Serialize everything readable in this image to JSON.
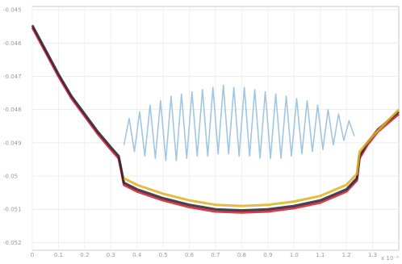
{
  "chart_data": {
    "type": "line",
    "title": "",
    "xlabel": "",
    "ylabel": "",
    "xlim": [
      0,
      1.4
    ],
    "ylim": [
      -0.0535,
      0.0565
    ],
    "grid": true,
    "legend": "none",
    "x_ticks": [
      {
        "v": 0.0,
        "label": "0"
      },
      {
        "v": 0.1,
        "label": "0.1"
      },
      {
        "v": 0.2,
        "label": "0.2"
      },
      {
        "v": 0.3,
        "label": "0.3"
      },
      {
        "v": 0.4,
        "label": "0.4"
      },
      {
        "v": 0.5,
        "label": "0.5"
      },
      {
        "v": 0.6,
        "label": "0.6"
      },
      {
        "v": 0.7,
        "label": "0.7"
      },
      {
        "v": 0.8,
        "label": "0.8"
      },
      {
        "v": 0.9,
        "label": "0.9"
      },
      {
        "v": 1.0,
        "label": "1.0"
      },
      {
        "v": 1.1,
        "label": "1.1"
      },
      {
        "v": 1.2,
        "label": "1.2"
      },
      {
        "v": 1.3,
        "label": "1.3"
      }
    ],
    "x_axis_note": "x 10⁻³",
    "y_ticks": [
      {
        "v": 0.055,
        "label": "-0.045"
      },
      {
        "v": 0.04,
        "label": "-0.046"
      },
      {
        "v": 0.025,
        "label": "-0.047"
      },
      {
        "v": 0.01,
        "label": "-0.048"
      },
      {
        "v": -0.005,
        "label": "-0.049"
      },
      {
        "v": -0.02,
        "label": "-0.05"
      },
      {
        "v": -0.035,
        "label": "-0.051"
      },
      {
        "v": -0.05,
        "label": "-0.052"
      }
    ],
    "series": [
      {
        "color": "#d11a2a",
        "x": [
          0,
          0.05,
          0.1,
          0.15,
          0.2,
          0.25,
          0.3,
          0.33,
          0.34,
          0.35,
          0.4,
          0.5,
          0.6,
          0.7,
          0.8,
          0.9,
          1.0,
          1.1,
          1.2,
          1.24,
          1.25,
          1.28,
          1.32,
          1.36,
          1.4
        ],
        "y": [
          0.047,
          0.036,
          0.025,
          0.015,
          0.007,
          -0.001,
          -0.008,
          -0.012,
          -0.018,
          -0.024,
          -0.027,
          -0.031,
          -0.034,
          -0.036,
          -0.0365,
          -0.036,
          -0.0345,
          -0.032,
          -0.027,
          -0.022,
          -0.012,
          -0.006,
          0.0,
          0.004,
          0.008
        ]
      },
      {
        "color": "#2a2030",
        "x": [
          0,
          0.05,
          0.1,
          0.15,
          0.2,
          0.25,
          0.3,
          0.33,
          0.34,
          0.35,
          0.4,
          0.5,
          0.6,
          0.7,
          0.8,
          0.9,
          1.0,
          1.1,
          1.2,
          1.24,
          1.25,
          1.28,
          1.32,
          1.36,
          1.4
        ],
        "y": [
          0.048,
          0.037,
          0.026,
          0.016,
          0.008,
          0.0,
          -0.007,
          -0.011,
          -0.017,
          -0.023,
          -0.026,
          -0.03,
          -0.033,
          -0.035,
          -0.0355,
          -0.035,
          -0.0335,
          -0.031,
          -0.026,
          -0.021,
          -0.011,
          -0.005,
          0.001,
          0.005,
          0.009
        ]
      },
      {
        "color": "#e0b020",
        "x": [
          0.35,
          0.4,
          0.5,
          0.6,
          0.7,
          0.8,
          0.9,
          1.0,
          1.1,
          1.2,
          1.24,
          1.25,
          1.3,
          1.35,
          1.4
        ],
        "y": [
          -0.021,
          -0.024,
          -0.028,
          -0.031,
          -0.033,
          -0.0335,
          -0.033,
          -0.0315,
          -0.029,
          -0.024,
          -0.019,
          -0.009,
          -0.002,
          0.004,
          0.01
        ]
      },
      {
        "color": "#9ec3de",
        "x": [
          0.35,
          0.37,
          0.39,
          0.41,
          0.43,
          0.45,
          0.47,
          0.49,
          0.51,
          0.53,
          0.55,
          0.57,
          0.59,
          0.61,
          0.63,
          0.65,
          0.67,
          0.69,
          0.71,
          0.73,
          0.75,
          0.77,
          0.79,
          0.81,
          0.83,
          0.85,
          0.87,
          0.89,
          0.91,
          0.93,
          0.95,
          0.97,
          0.99,
          1.01,
          1.03,
          1.05,
          1.07,
          1.09,
          1.11,
          1.13,
          1.15,
          1.17,
          1.19,
          1.21,
          1.23
        ],
        "y": [
          -0.006,
          0.006,
          -0.009,
          0.009,
          -0.011,
          0.012,
          -0.012,
          0.014,
          -0.013,
          0.016,
          -0.013,
          0.017,
          -0.012,
          0.018,
          -0.011,
          0.019,
          -0.011,
          0.02,
          -0.01,
          0.021,
          -0.01,
          0.02,
          -0.011,
          0.02,
          -0.011,
          0.019,
          -0.012,
          0.018,
          -0.012,
          0.017,
          -0.012,
          0.016,
          -0.011,
          0.015,
          -0.01,
          0.014,
          -0.009,
          0.012,
          -0.008,
          0.01,
          -0.006,
          0.008,
          -0.004,
          0.005,
          -0.002
        ]
      }
    ]
  }
}
